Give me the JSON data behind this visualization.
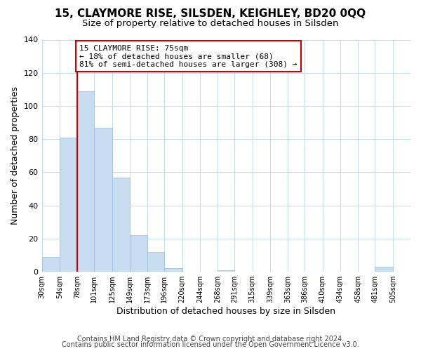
{
  "title1": "15, CLAYMORE RISE, SILSDEN, KEIGHLEY, BD20 0QQ",
  "title2": "Size of property relative to detached houses in Silsden",
  "xlabel": "Distribution of detached houses by size in Silsden",
  "ylabel": "Number of detached properties",
  "bar_color": "#c8dcf0",
  "bar_edge_color": "#a0bcd8",
  "bin_labels": [
    "30sqm",
    "54sqm",
    "78sqm",
    "101sqm",
    "125sqm",
    "149sqm",
    "173sqm",
    "196sqm",
    "220sqm",
    "244sqm",
    "268sqm",
    "291sqm",
    "315sqm",
    "339sqm",
    "363sqm",
    "386sqm",
    "410sqm",
    "434sqm",
    "458sqm",
    "481sqm",
    "505sqm"
  ],
  "bin_edges": [
    30,
    54,
    78,
    101,
    125,
    149,
    173,
    196,
    220,
    244,
    268,
    291,
    315,
    339,
    363,
    386,
    410,
    434,
    458,
    481,
    505
  ],
  "counts": [
    9,
    81,
    109,
    87,
    57,
    22,
    12,
    2,
    0,
    0,
    1,
    0,
    0,
    0,
    0,
    0,
    0,
    0,
    0,
    3,
    0
  ],
  "property_bin_edge": 78,
  "vline_color": "#cc0000",
  "annotation_text": "15 CLAYMORE RISE: 75sqm\n← 18% of detached houses are smaller (68)\n81% of semi-detached houses are larger (308) →",
  "annotation_box_color": "#ffffff",
  "annotation_box_edge": "#cc0000",
  "ylim": [
    0,
    140
  ],
  "yticks": [
    0,
    20,
    40,
    60,
    80,
    100,
    120,
    140
  ],
  "footer1": "Contains HM Land Registry data © Crown copyright and database right 2024.",
  "footer2": "Contains public sector information licensed under the Open Government Licence v3.0.",
  "bg_color": "#ffffff",
  "grid_color": "#c8dcf0",
  "title1_fontsize": 11,
  "title2_fontsize": 9.5,
  "xlabel_fontsize": 9,
  "ylabel_fontsize": 9,
  "tick_fontsize": 8,
  "xtick_fontsize": 7,
  "footer_fontsize": 7,
  "ann_fontsize": 8
}
